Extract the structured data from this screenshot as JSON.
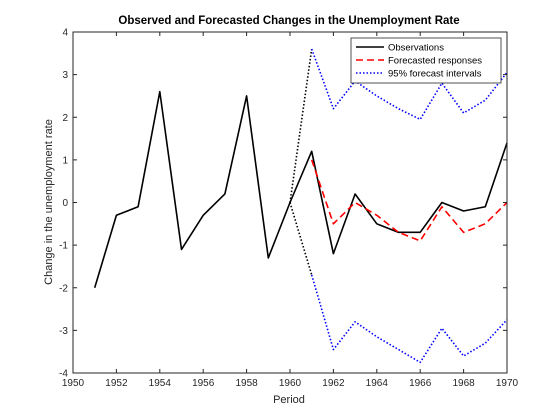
{
  "chart_data": {
    "type": "line",
    "title": "Observed and Forecasted Changes in the Unemployment Rate",
    "xlabel": "Period",
    "ylabel": "Change in the unemployment rate",
    "xlim": [
      1950,
      1970
    ],
    "ylim": [
      -4,
      4
    ],
    "xticks": [
      1950,
      1952,
      1954,
      1956,
      1958,
      1960,
      1962,
      1964,
      1966,
      1968,
      1970
    ],
    "yticks": [
      -4,
      -3,
      -2,
      -1,
      0,
      1,
      2,
      3,
      4
    ],
    "grid": false,
    "legend_position": "top-right",
    "series": [
      {
        "name": "Observations",
        "color": "#000000",
        "style": "solid",
        "x": [
          1951,
          1952,
          1953,
          1954,
          1955,
          1956,
          1957,
          1958,
          1959,
          1960,
          1961,
          1962,
          1963,
          1964,
          1965,
          1966,
          1967,
          1968,
          1969,
          1970
        ],
        "y": [
          -2.0,
          -0.3,
          -0.1,
          2.6,
          -1.1,
          -0.3,
          0.2,
          2.5,
          -1.3,
          0.0,
          1.2,
          -1.2,
          0.2,
          -0.5,
          -0.7,
          -0.7,
          0.0,
          -0.2,
          -0.1,
          1.4
        ]
      },
      {
        "name": "Forecasted responses",
        "color": "#ff0000",
        "style": "dashed",
        "x": [
          1961,
          1962,
          1963,
          1964,
          1965,
          1966,
          1967,
          1968,
          1969,
          1970
        ],
        "y": [
          1.0,
          -0.5,
          0.0,
          -0.3,
          -0.7,
          -0.9,
          -0.1,
          -0.7,
          -0.5,
          0.0
        ]
      },
      {
        "name": "95% forecast intervals",
        "color": "#0000ff",
        "style": "dotted",
        "x": [
          1961,
          1962,
          1963,
          1964,
          1965,
          1966,
          1967,
          1968,
          1969,
          1970
        ],
        "y": [
          3.6,
          2.2,
          2.85,
          2.5,
          2.2,
          1.95,
          2.8,
          2.1,
          2.4,
          3.05
        ]
      },
      {
        "color": "#0000ff",
        "style": "dotted",
        "x": [
          1961,
          1962,
          1963,
          1964,
          1965,
          1966,
          1967,
          1968,
          1969,
          1970
        ],
        "y": [
          -1.7,
          -3.45,
          -2.8,
          -3.15,
          -3.45,
          -3.75,
          -2.95,
          -3.6,
          -3.3,
          -2.75
        ]
      }
    ],
    "connectors": [
      {
        "color": "#000000",
        "style": "dotted",
        "x": [
          1960,
          1961
        ],
        "y": [
          0.0,
          3.6
        ]
      },
      {
        "color": "#000000",
        "style": "dotted",
        "x": [
          1960,
          1961
        ],
        "y": [
          0.0,
          -1.7
        ]
      }
    ]
  }
}
